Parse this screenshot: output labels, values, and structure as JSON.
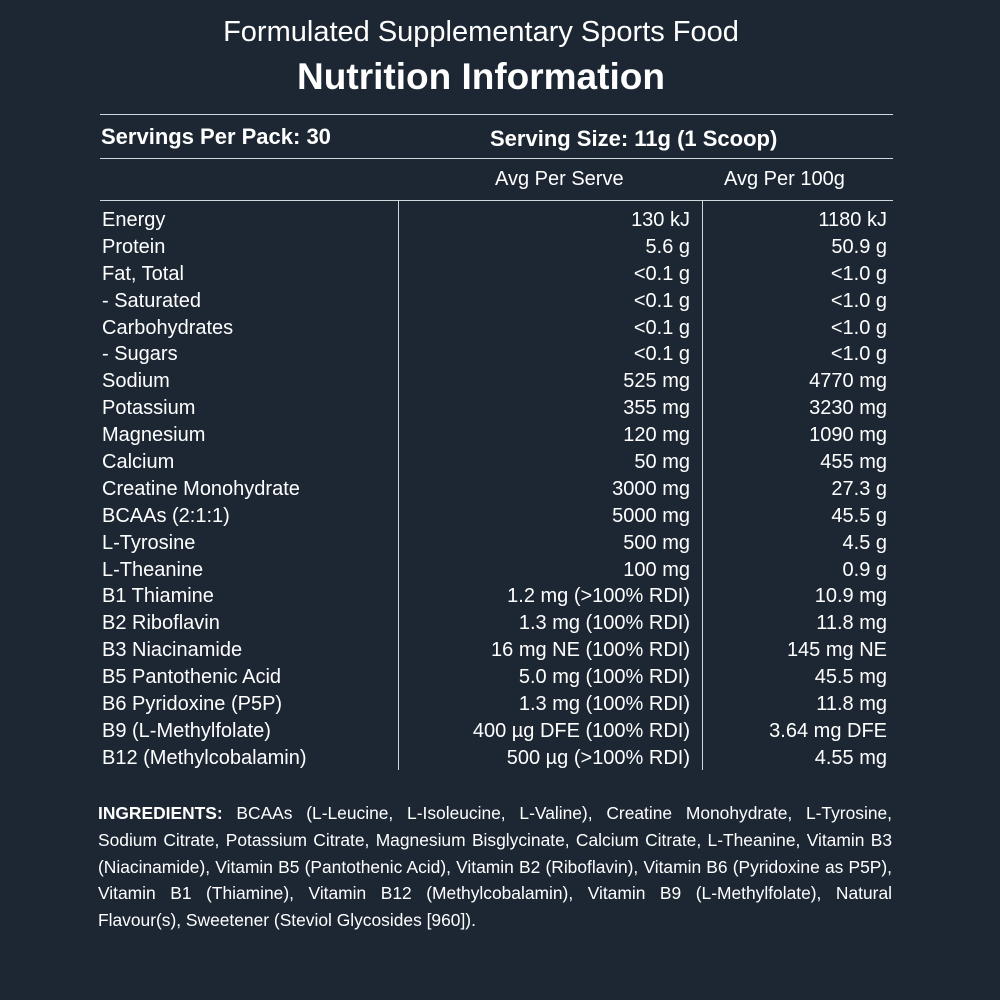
{
  "header": {
    "subtitle": "Formulated Supplementary Sports Food",
    "title": "Nutrition Information"
  },
  "servings": {
    "per_pack": "Servings Per Pack: 30",
    "size": "Serving Size: 11g (1 Scoop)"
  },
  "columns": {
    "per_serve": "Avg Per Serve",
    "per_100g": "Avg Per 100g"
  },
  "rows": [
    {
      "name": "Energy",
      "serve": "130 kJ",
      "per100": "1180 kJ"
    },
    {
      "name": "Protein",
      "serve": "5.6 g",
      "per100": "50.9 g"
    },
    {
      "name": "Fat, Total",
      "serve": "<0.1 g",
      "per100": "<1.0 g"
    },
    {
      "name": "- Saturated",
      "serve": "<0.1 g",
      "per100": "<1.0 g"
    },
    {
      "name": "Carbohydrates",
      "serve": "<0.1 g",
      "per100": "<1.0 g"
    },
    {
      "name": "- Sugars",
      "serve": "<0.1 g",
      "per100": "<1.0 g"
    },
    {
      "name": "Sodium",
      "serve": "525 mg",
      "per100": "4770 mg"
    },
    {
      "name": "Potassium",
      "serve": "355 mg",
      "per100": "3230 mg"
    },
    {
      "name": "Magnesium",
      "serve": "120 mg",
      "per100": "1090 mg"
    },
    {
      "name": "Calcium",
      "serve": "50 mg",
      "per100": "455 mg"
    },
    {
      "name": "Creatine Monohydrate",
      "serve": "3000 mg",
      "per100": "27.3 g"
    },
    {
      "name": "BCAAs (2:1:1)",
      "serve": "5000 mg",
      "per100": "45.5 g"
    },
    {
      "name": "L-Tyrosine",
      "serve": "500 mg",
      "per100": "4.5 g"
    },
    {
      "name": "L-Theanine",
      "serve": "100 mg",
      "per100": "0.9 g"
    },
    {
      "name": "B1 Thiamine",
      "serve": "1.2 mg (>100% RDI)",
      "per100": "10.9 mg"
    },
    {
      "name": "B2 Riboflavin",
      "serve": "1.3 mg (100% RDI)",
      "per100": "11.8 mg"
    },
    {
      "name": "B3 Niacinamide",
      "serve": "16 mg NE (100% RDI)",
      "per100": "145 mg NE"
    },
    {
      "name": "B5 Pantothenic Acid",
      "serve": "5.0 mg (100% RDI)",
      "per100": "45.5 mg"
    },
    {
      "name": "B6 Pyridoxine (P5P)",
      "serve": "1.3 mg (100% RDI)",
      "per100": "11.8 mg"
    },
    {
      "name": "B9 (L-Methylfolate)",
      "serve": "400 µg DFE (100% RDI)",
      "per100": "3.64 mg DFE"
    },
    {
      "name": "B12 (Methylcobalamin)",
      "serve": "500 µg (>100% RDI)",
      "per100": "4.55 mg"
    }
  ],
  "ingredients": {
    "label": "INGREDIENTS:",
    "text": " BCAAs (L-Leucine, L-Isoleucine, L-Valine), Creatine Monohydrate, L-Tyrosine, Sodium Citrate, Potassium Citrate, Magnesium Bisglycinate, Calcium Citrate, L-Theanine, Vitamin B3 (Niacinamide), Vitamin B5 (Pantothenic Acid), Vitamin B2 (Riboflavin), Vitamin B6 (Pyridoxine as P5P), Vitamin B1 (Thiamine), Vitamin B12 (Methylcobalamin), Vitamin B9 (L-Methylfolate), Natural Flavour(s), Sweetener (Steviol Glycosides [960])."
  },
  "colors": {
    "background": "#1c2733",
    "text": "#ffffff",
    "rule": "#cfd6dc"
  }
}
